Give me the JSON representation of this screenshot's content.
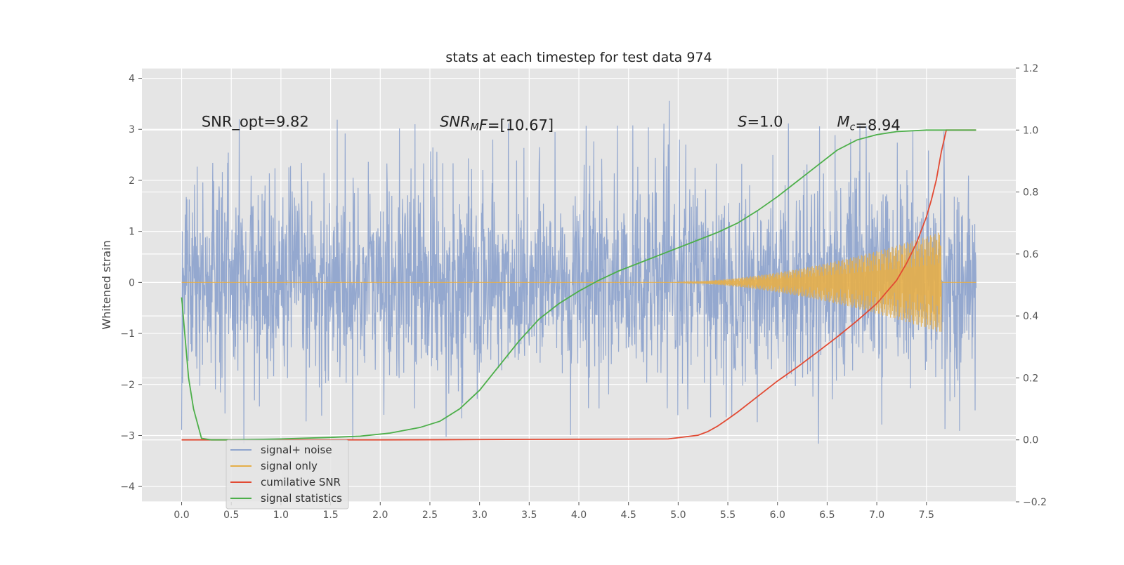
{
  "chart_data": {
    "type": "line",
    "title": "stats at each timestep for test data 974",
    "ylabel": "Whitened strain",
    "y2label": "",
    "xlabel": "",
    "xlim": [
      -0.4,
      8.4
    ],
    "ylim": [
      -4.3,
      4.2
    ],
    "y2lim": [
      -0.2,
      1.2
    ],
    "xticks": [
      0.0,
      0.5,
      1.0,
      1.5,
      2.0,
      2.5,
      3.0,
      3.5,
      4.0,
      4.5,
      5.0,
      5.5,
      6.0,
      6.5,
      7.0,
      7.5
    ],
    "xtick_labels": [
      "0.0",
      "0.5",
      "1.0",
      "1.5",
      "2.0",
      "2.5",
      "3.0",
      "3.5",
      "4.0",
      "4.5",
      "5.0",
      "5.5",
      "6.0",
      "6.5",
      "7.0",
      "7.5"
    ],
    "yticks": [
      -4,
      -3,
      -2,
      -1,
      0,
      1,
      2,
      3,
      4
    ],
    "ytick_labels": [
      "−4",
      "−3",
      "−2",
      "−1",
      "0",
      "1",
      "2",
      "3",
      "4"
    ],
    "y2ticks": [
      -0.2,
      0.0,
      0.2,
      0.4,
      0.6,
      0.8,
      1.0,
      1.2
    ],
    "y2tick_labels": [
      "−0.2",
      "0.0",
      "0.2",
      "0.4",
      "0.6",
      "0.8",
      "1.0",
      "1.2"
    ],
    "grid": true,
    "legend_position": "lower-left",
    "annotations": [
      {
        "id": "snr-opt",
        "x": 0.2,
        "y": 3.05,
        "parts": [
          {
            "text": "SNR_opt=9.82",
            "style": "normal"
          }
        ]
      },
      {
        "id": "snr-mf",
        "x": 2.6,
        "y": 3.05,
        "parts": [
          {
            "text": "SNR",
            "style": "italic"
          },
          {
            "text": "M",
            "style": "sub"
          },
          {
            "text": "F",
            "style": "italic"
          },
          {
            "text": "=[10.67]",
            "style": "normal"
          }
        ]
      },
      {
        "id": "spin-s",
        "x": 5.6,
        "y": 3.05,
        "parts": [
          {
            "text": "S",
            "style": "italic"
          },
          {
            "text": "=1.0",
            "style": "normal"
          }
        ]
      },
      {
        "id": "chirp-mass",
        "x": 6.6,
        "y": 3.05,
        "parts": [
          {
            "text": "M",
            "style": "italic"
          },
          {
            "text": "c",
            "style": "sub"
          },
          {
            "text": "=8.94",
            "style": "normal"
          }
        ]
      }
    ],
    "series": [
      {
        "name": "signal+ noise",
        "kind": "noise",
        "axis": "left",
        "color": "#8fa4cd",
        "x_range": [
          0.0,
          8.0
        ],
        "typical_abs": 1.5,
        "min": -4.0,
        "max": 3.8
      },
      {
        "name": "signal only",
        "kind": "chirp",
        "axis": "left",
        "color": "#e5ae48",
        "x_range": [
          0.0,
          8.0
        ],
        "onset": 4.9,
        "merger": 7.65,
        "peak_abs": 1.15
      },
      {
        "name": "cumilative SNR",
        "kind": "line",
        "axis": "right",
        "color": "#e24a33",
        "x": [
          0.0,
          1.0,
          2.0,
          3.0,
          4.0,
          4.9,
          5.2,
          5.3,
          5.4,
          5.5,
          5.6,
          5.8,
          6.0,
          6.2,
          6.4,
          6.6,
          6.8,
          7.0,
          7.2,
          7.3,
          7.4,
          7.5,
          7.55,
          7.6,
          7.65,
          7.7,
          8.0
        ],
        "y": [
          0.0,
          0.0,
          0.0,
          0.001,
          0.002,
          0.003,
          0.015,
          0.027,
          0.045,
          0.067,
          0.09,
          0.14,
          0.19,
          0.235,
          0.283,
          0.332,
          0.384,
          0.44,
          0.515,
          0.57,
          0.635,
          0.72,
          0.775,
          0.84,
          0.93,
          1.0,
          1.0
        ]
      },
      {
        "name": "signal statistics",
        "kind": "line",
        "axis": "right",
        "color": "#4daf4a",
        "x": [
          0.0,
          0.07,
          0.12,
          0.2,
          0.3,
          0.5,
          1.0,
          1.5,
          1.8,
          2.1,
          2.4,
          2.6,
          2.8,
          3.0,
          3.2,
          3.4,
          3.6,
          3.8,
          4.0,
          4.2,
          4.4,
          4.6,
          4.8,
          5.0,
          5.2,
          5.4,
          5.6,
          5.8,
          6.0,
          6.2,
          6.4,
          6.6,
          6.8,
          7.0,
          7.2,
          7.5,
          7.8,
          8.0
        ],
        "y": [
          0.46,
          0.2,
          0.1,
          0.005,
          0.0,
          0.0,
          0.003,
          0.008,
          0.012,
          0.022,
          0.04,
          0.06,
          0.1,
          0.16,
          0.24,
          0.32,
          0.39,
          0.44,
          0.48,
          0.515,
          0.545,
          0.57,
          0.595,
          0.62,
          0.645,
          0.67,
          0.7,
          0.74,
          0.785,
          0.835,
          0.885,
          0.935,
          0.968,
          0.985,
          0.995,
          1.0,
          1.0,
          1.0
        ]
      }
    ]
  },
  "legend": {
    "items": [
      {
        "label": "signal+ noise",
        "color": "#8fa4cd"
      },
      {
        "label": "signal only",
        "color": "#e5ae48"
      },
      {
        "label": "cumilative SNR",
        "color": "#e24a33"
      },
      {
        "label": "signal statistics",
        "color": "#4daf4a"
      }
    ]
  }
}
